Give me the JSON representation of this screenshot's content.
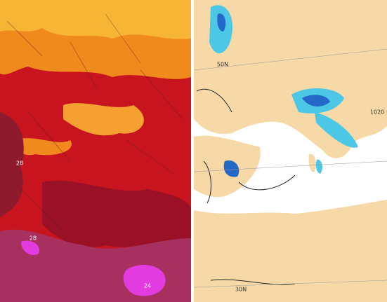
{
  "left_map": {
    "labels": [
      "28",
      "28",
      "24"
    ]
  },
  "right_map": {
    "labels": [
      "50N",
      "1020",
      "30N"
    ]
  }
}
